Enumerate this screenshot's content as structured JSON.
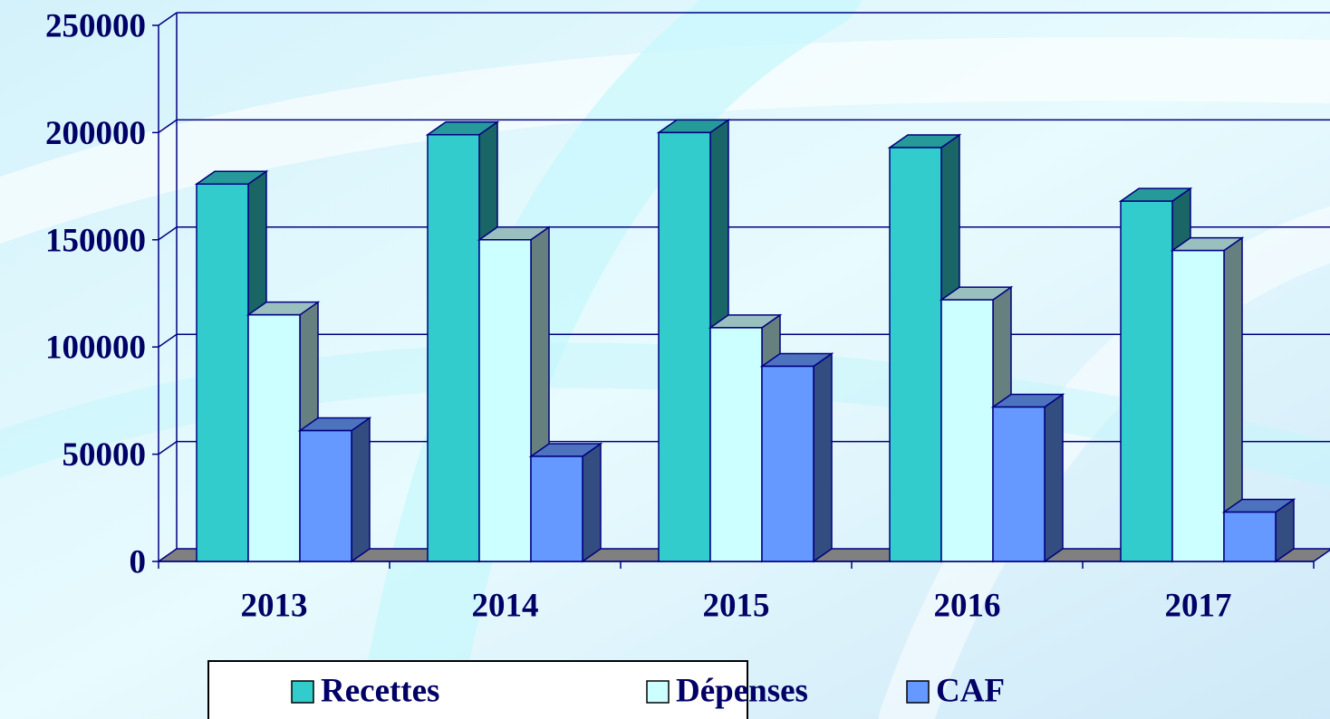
{
  "chart_data": {
    "type": "bar3d",
    "categories": [
      "2013",
      "2014",
      "2015",
      "2016",
      "2017"
    ],
    "series": [
      {
        "name": "Recettes",
        "color": "#33cccc",
        "values": [
          176000,
          199000,
          200000,
          193000,
          168000
        ]
      },
      {
        "name": "Dépenses",
        "color": "#ccffff",
        "values": [
          115000,
          150000,
          109000,
          122000,
          145000
        ]
      },
      {
        "name": "CAF",
        "color": "#6699ff",
        "values": [
          61000,
          49000,
          91000,
          72000,
          23000
        ]
      }
    ],
    "ylim": [
      0,
      250000
    ],
    "yticks": [
      0,
      50000,
      100000,
      150000,
      200000,
      250000
    ],
    "grid": true,
    "legend": "bottom"
  }
}
